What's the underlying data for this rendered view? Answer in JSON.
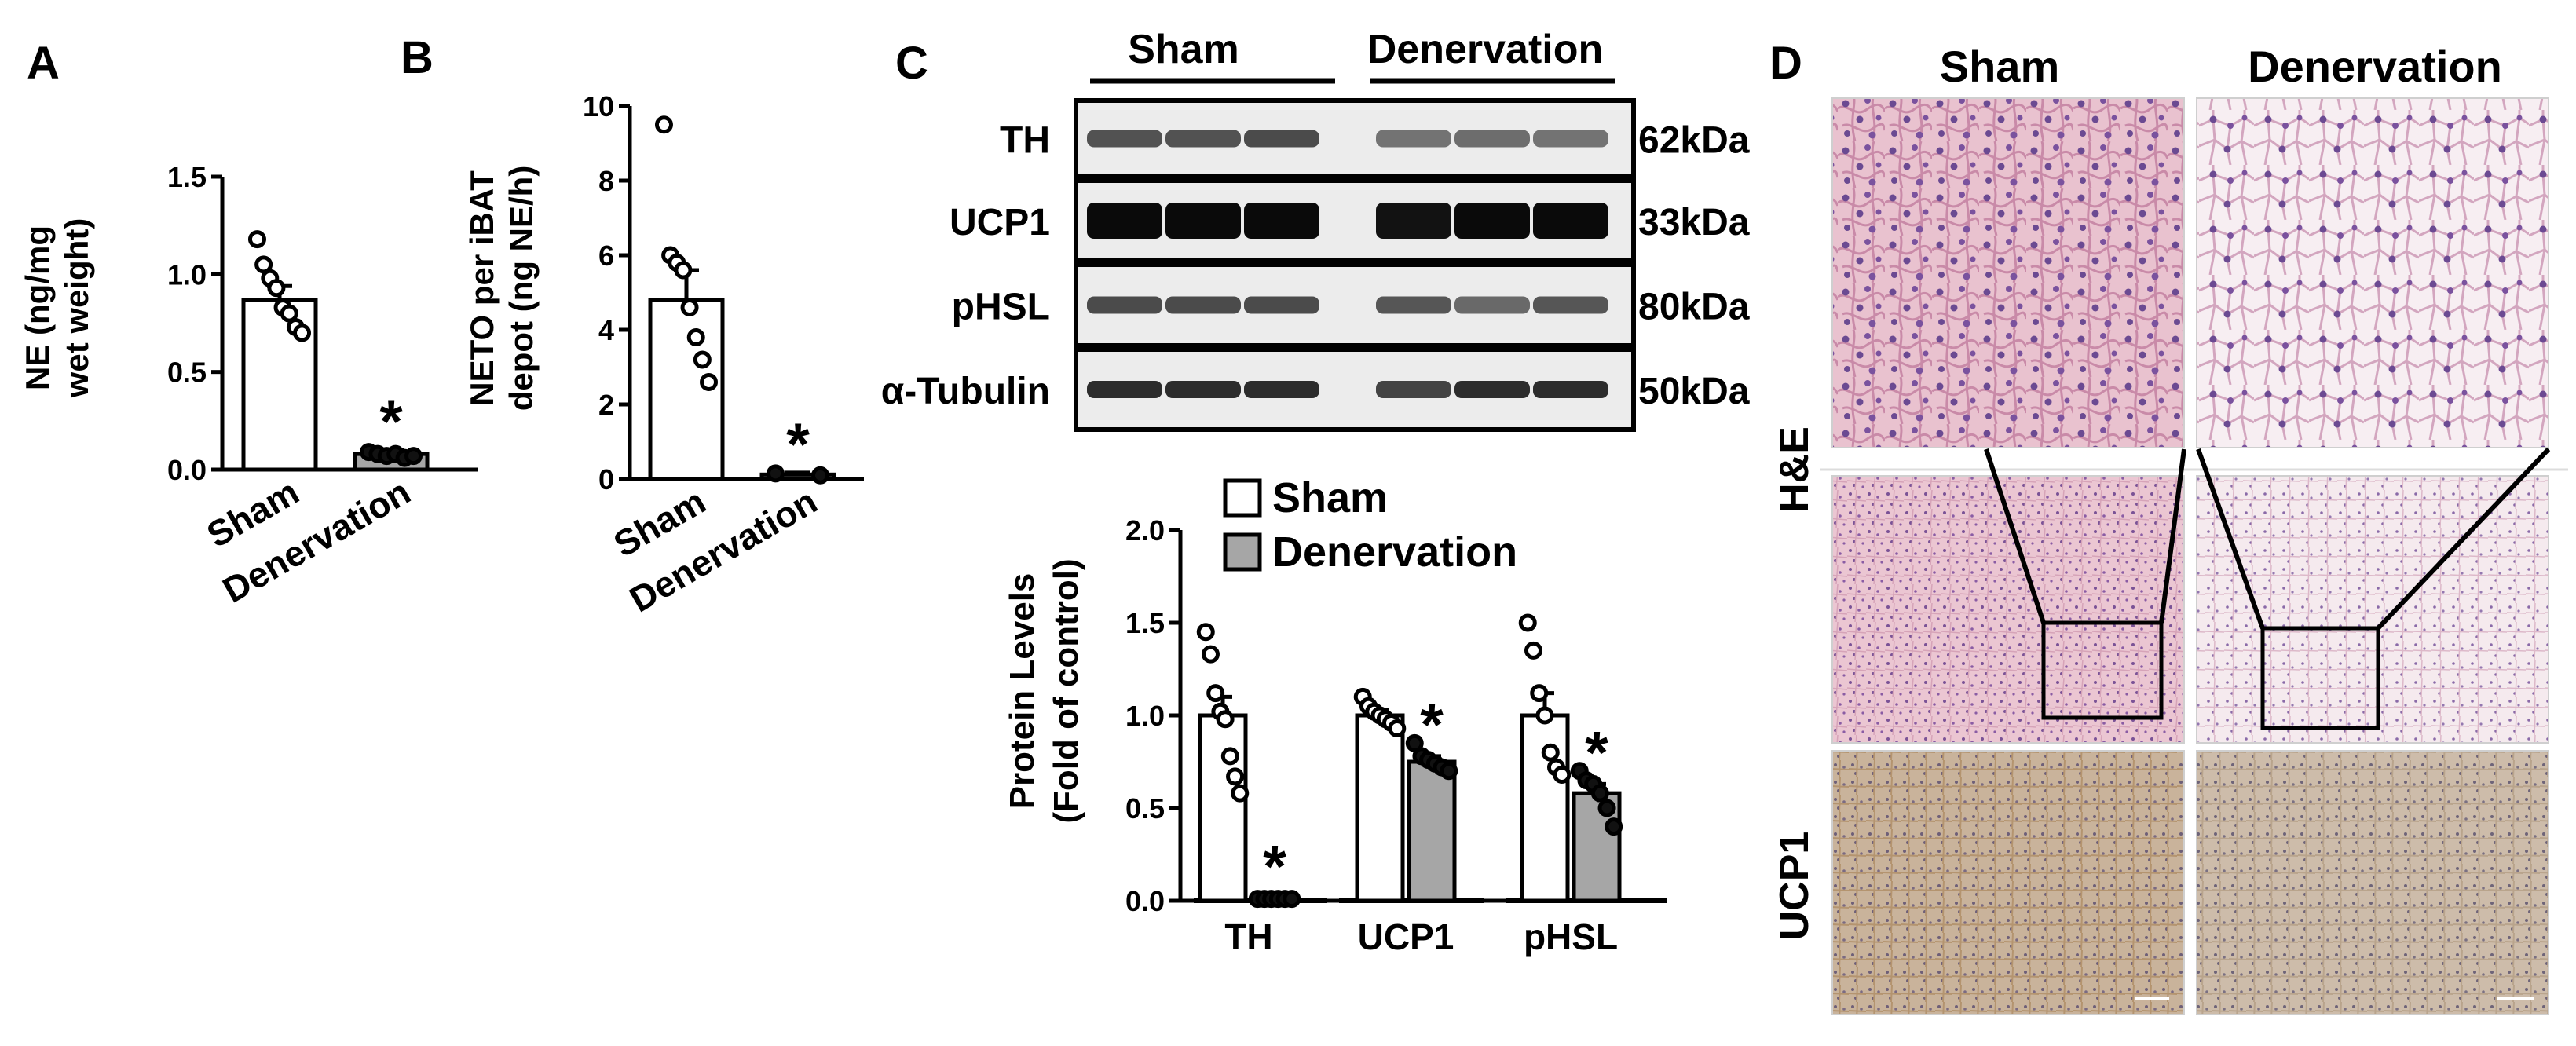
{
  "panels": {
    "A": {
      "letter": "A",
      "chart_data": {
        "type": "bar",
        "ylabel_lines": [
          "NE (ng/mg",
          "wet weight)"
        ],
        "categories": [
          "Sham",
          "Denervation"
        ],
        "values": [
          0.87,
          0.08
        ],
        "errors": [
          0.07,
          0.02
        ],
        "points": [
          [
            1.18,
            1.05,
            0.98,
            0.93,
            0.83,
            0.8,
            0.73,
            0.7
          ],
          [
            0.09,
            0.08,
            0.07,
            0.08,
            0.06,
            0.07
          ]
        ],
        "ylim": [
          0,
          1.5
        ],
        "yticks": [
          0.0,
          0.5,
          1.0,
          1.5
        ],
        "ytick_labels": [
          "0.0",
          "0.5",
          "1.0",
          "1.5"
        ],
        "fills": [
          "#ffffff",
          "#a6a6a6"
        ],
        "significance": [
          "",
          "*"
        ]
      }
    },
    "B": {
      "letter": "B",
      "chart_data": {
        "type": "bar",
        "ylabel_lines": [
          "NETO per iBAT",
          "depot  (ng NE/h)"
        ],
        "categories": [
          "Sham",
          "Denervation"
        ],
        "values": [
          4.8,
          0.12
        ],
        "errors": [
          0.8,
          0.05
        ],
        "points": [
          [
            9.5,
            6.0,
            5.8,
            5.6,
            4.6,
            3.8,
            3.2,
            2.6
          ],
          [
            0.15,
            0.1
          ]
        ],
        "ylim": [
          0,
          10
        ],
        "yticks": [
          0,
          2,
          4,
          6,
          8,
          10
        ],
        "ytick_labels": [
          "0",
          "2",
          "4",
          "6",
          "8",
          "10"
        ],
        "fills": [
          "#ffffff",
          "#a6a6a6"
        ],
        "significance": [
          "",
          "*"
        ]
      }
    },
    "C": {
      "letter": "C",
      "blot": {
        "group_labels": [
          "Sham",
          "Denervation"
        ],
        "rows": [
          {
            "label": "TH",
            "size": "62kDa",
            "intensity": [
              0.62,
              0.62,
              0.66,
              0.45,
              0.48,
              0.45
            ]
          },
          {
            "label": "UCP1",
            "size": "33kDa",
            "intensity": [
              1.0,
              1.0,
              1.0,
              0.96,
              1.0,
              1.0
            ]
          },
          {
            "label": "pHSL",
            "size": "80kDa",
            "intensity": [
              0.66,
              0.66,
              0.66,
              0.6,
              0.5,
              0.6
            ]
          },
          {
            "label": "α-Tubulin",
            "size": "50kDa",
            "intensity": [
              0.82,
              0.82,
              0.82,
              0.7,
              0.82,
              0.82
            ]
          }
        ]
      },
      "chart_data": {
        "type": "bar",
        "ylabel_lines": [
          "Protein Levels",
          "(Fold of control)"
        ],
        "categories": [
          "TH",
          "UCP1",
          "pHSL"
        ],
        "series": [
          {
            "name": "Sham",
            "values": [
              1.0,
              1.0,
              1.0
            ],
            "errors": [
              0.1,
              0.03,
              0.12
            ],
            "points": [
              [
                1.45,
                1.33,
                1.12,
                1.02,
                0.98,
                0.78,
                0.67,
                0.58
              ],
              [
                1.1,
                1.05,
                1.02,
                1.0,
                0.98,
                0.96,
                0.93
              ],
              [
                1.5,
                1.35,
                1.12,
                1.0,
                0.8,
                0.72,
                0.68
              ]
            ],
            "fill": "#ffffff"
          },
          {
            "name": "Denervation",
            "values": [
              0.01,
              0.75,
              0.58
            ],
            "errors": [
              0.005,
              0.03,
              0.05
            ],
            "points": [
              [
                0.01,
                0.01,
                0.01,
                0.01,
                0.01,
                0.01
              ],
              [
                0.85,
                0.78,
                0.76,
                0.74,
                0.72,
                0.7
              ],
              [
                0.7,
                0.65,
                0.63,
                0.58,
                0.5,
                0.4
              ]
            ],
            "fill": "#a6a6a6"
          }
        ],
        "significance": [
          [
            "",
            "*"
          ],
          [
            "",
            "*"
          ],
          [
            "",
            "*"
          ]
        ],
        "ylim": [
          0,
          2.0
        ],
        "yticks": [
          0.0,
          0.5,
          1.0,
          1.5,
          2.0
        ],
        "ytick_labels": [
          "0.0",
          "0.5",
          "1.0",
          "1.5",
          "2.0"
        ],
        "legend_placement": "top"
      }
    },
    "D": {
      "letter": "D",
      "column_labels": [
        "Sham",
        "Denervation"
      ],
      "row_labels": [
        "H&E",
        "UCP1"
      ]
    }
  }
}
